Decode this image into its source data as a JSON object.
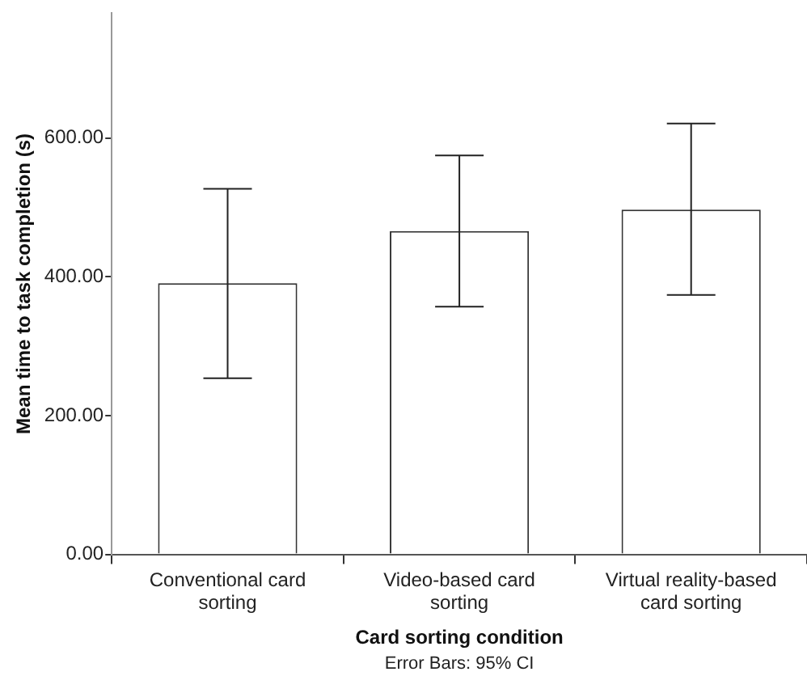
{
  "chart_data": {
    "type": "bar",
    "xlabel": "Card sorting condition",
    "ylabel": "Mean time to task completion (s)",
    "categories": [
      "Conventional card sorting",
      "Video-based card sorting",
      "Virtual reality-based card sorting"
    ],
    "values": [
      391,
      466,
      497
    ],
    "errors": [
      [
        254,
        527
      ],
      [
        357,
        575
      ],
      [
        374,
        621
      ]
    ],
    "color": "#ffffff",
    "ylim": [
      0,
      780
    ],
    "yticks": [
      {
        "value": 0,
        "label": "0.00"
      },
      {
        "value": 200,
        "label": "200.00"
      },
      {
        "value": 400,
        "label": "400.00"
      },
      {
        "value": 600,
        "label": "600.00"
      }
    ],
    "grid": false,
    "legend": false,
    "annotations": [
      "Error Bars: 95% CI"
    ]
  }
}
